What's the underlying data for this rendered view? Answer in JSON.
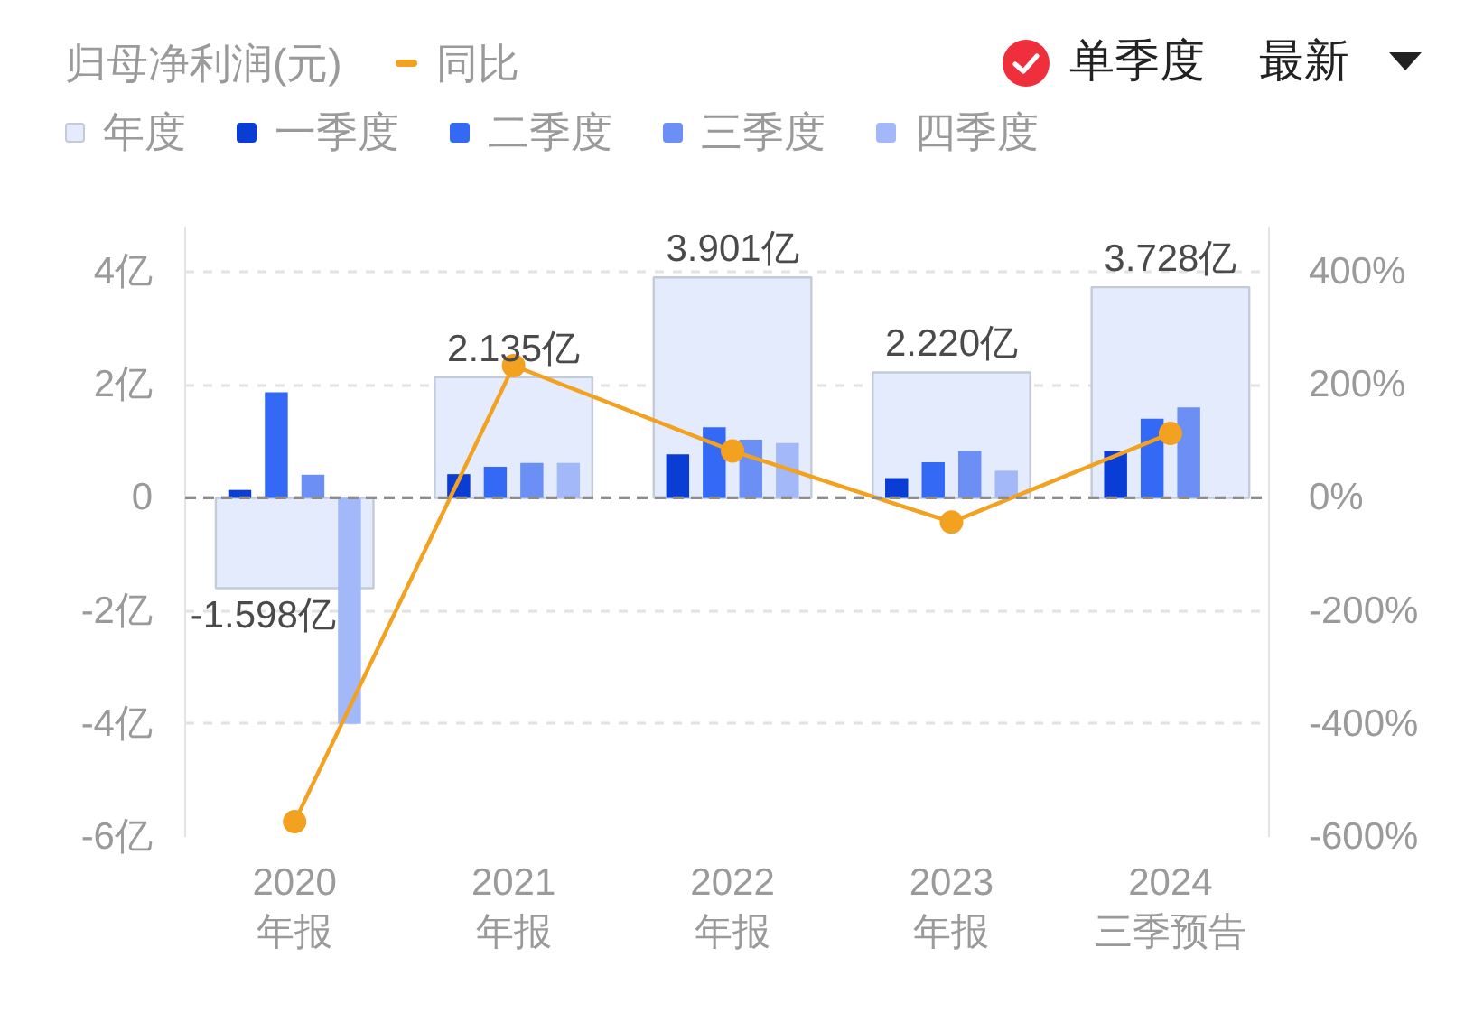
{
  "chart_data": {
    "type": "bar",
    "ylabel": "归母净利润(元)",
    "categories": [
      "2020\n年报",
      "2021\n年报",
      "2022\n年报",
      "2023\n年报",
      "2024\n三季预告"
    ],
    "series": [
      {
        "name": "同比",
        "type": "line",
        "axis": "y2",
        "color": "#f2a120",
        "values": [
          -573,
          234,
          83,
          -43,
          114
        ]
      },
      {
        "name": "年度",
        "color": "#e3ebfc",
        "values": [
          -1.598,
          2.135,
          3.901,
          2.22,
          3.728
        ],
        "value_labels": [
          "-1.598亿",
          "2.135亿",
          "3.901亿",
          "2.220亿",
          "3.728亿"
        ]
      },
      {
        "name": "一季度",
        "color": "#0a3dd4",
        "values": [
          0.14,
          0.42,
          0.77,
          0.35,
          0.83
        ]
      },
      {
        "name": "二季度",
        "color": "#3369f5",
        "values": [
          1.87,
          0.55,
          1.25,
          0.63,
          1.4
        ]
      },
      {
        "name": "三季度",
        "color": "#6b8ff4",
        "values": [
          0.41,
          0.62,
          1.03,
          0.83,
          1.6
        ]
      },
      {
        "name": "四季度",
        "color": "#a2b8f8",
        "values": [
          -4.0,
          0.62,
          0.97,
          0.48,
          null
        ]
      }
    ],
    "ylim": [
      -6,
      4.8
    ],
    "yticks": [
      {
        "value": -6,
        "label": "-6亿"
      },
      {
        "value": -4,
        "label": "-4亿"
      },
      {
        "value": -2,
        "label": "-2亿"
      },
      0,
      {
        "value": 2,
        "label": "2亿"
      },
      {
        "value": 4,
        "label": "4亿"
      }
    ],
    "y2lim": [
      -600,
      480
    ],
    "y2ticks": [
      {
        "value": -600,
        "label": "-600%"
      },
      {
        "value": -400,
        "label": "-400%"
      },
      {
        "value": -200,
        "label": "-200%"
      },
      {
        "value": 0,
        "label": "0%"
      },
      {
        "value": 200,
        "label": "200%"
      },
      {
        "value": 400,
        "label": "400%"
      }
    ],
    "grid": "y",
    "legend": "top",
    "marker": "circle",
    "ref_lines": [
      {
        "axis": "y",
        "value": 0,
        "color": "#8c8c8c",
        "line_style": "dashed"
      }
    ],
    "annotations": [
      "单季度",
      "最新"
    ]
  }
}
